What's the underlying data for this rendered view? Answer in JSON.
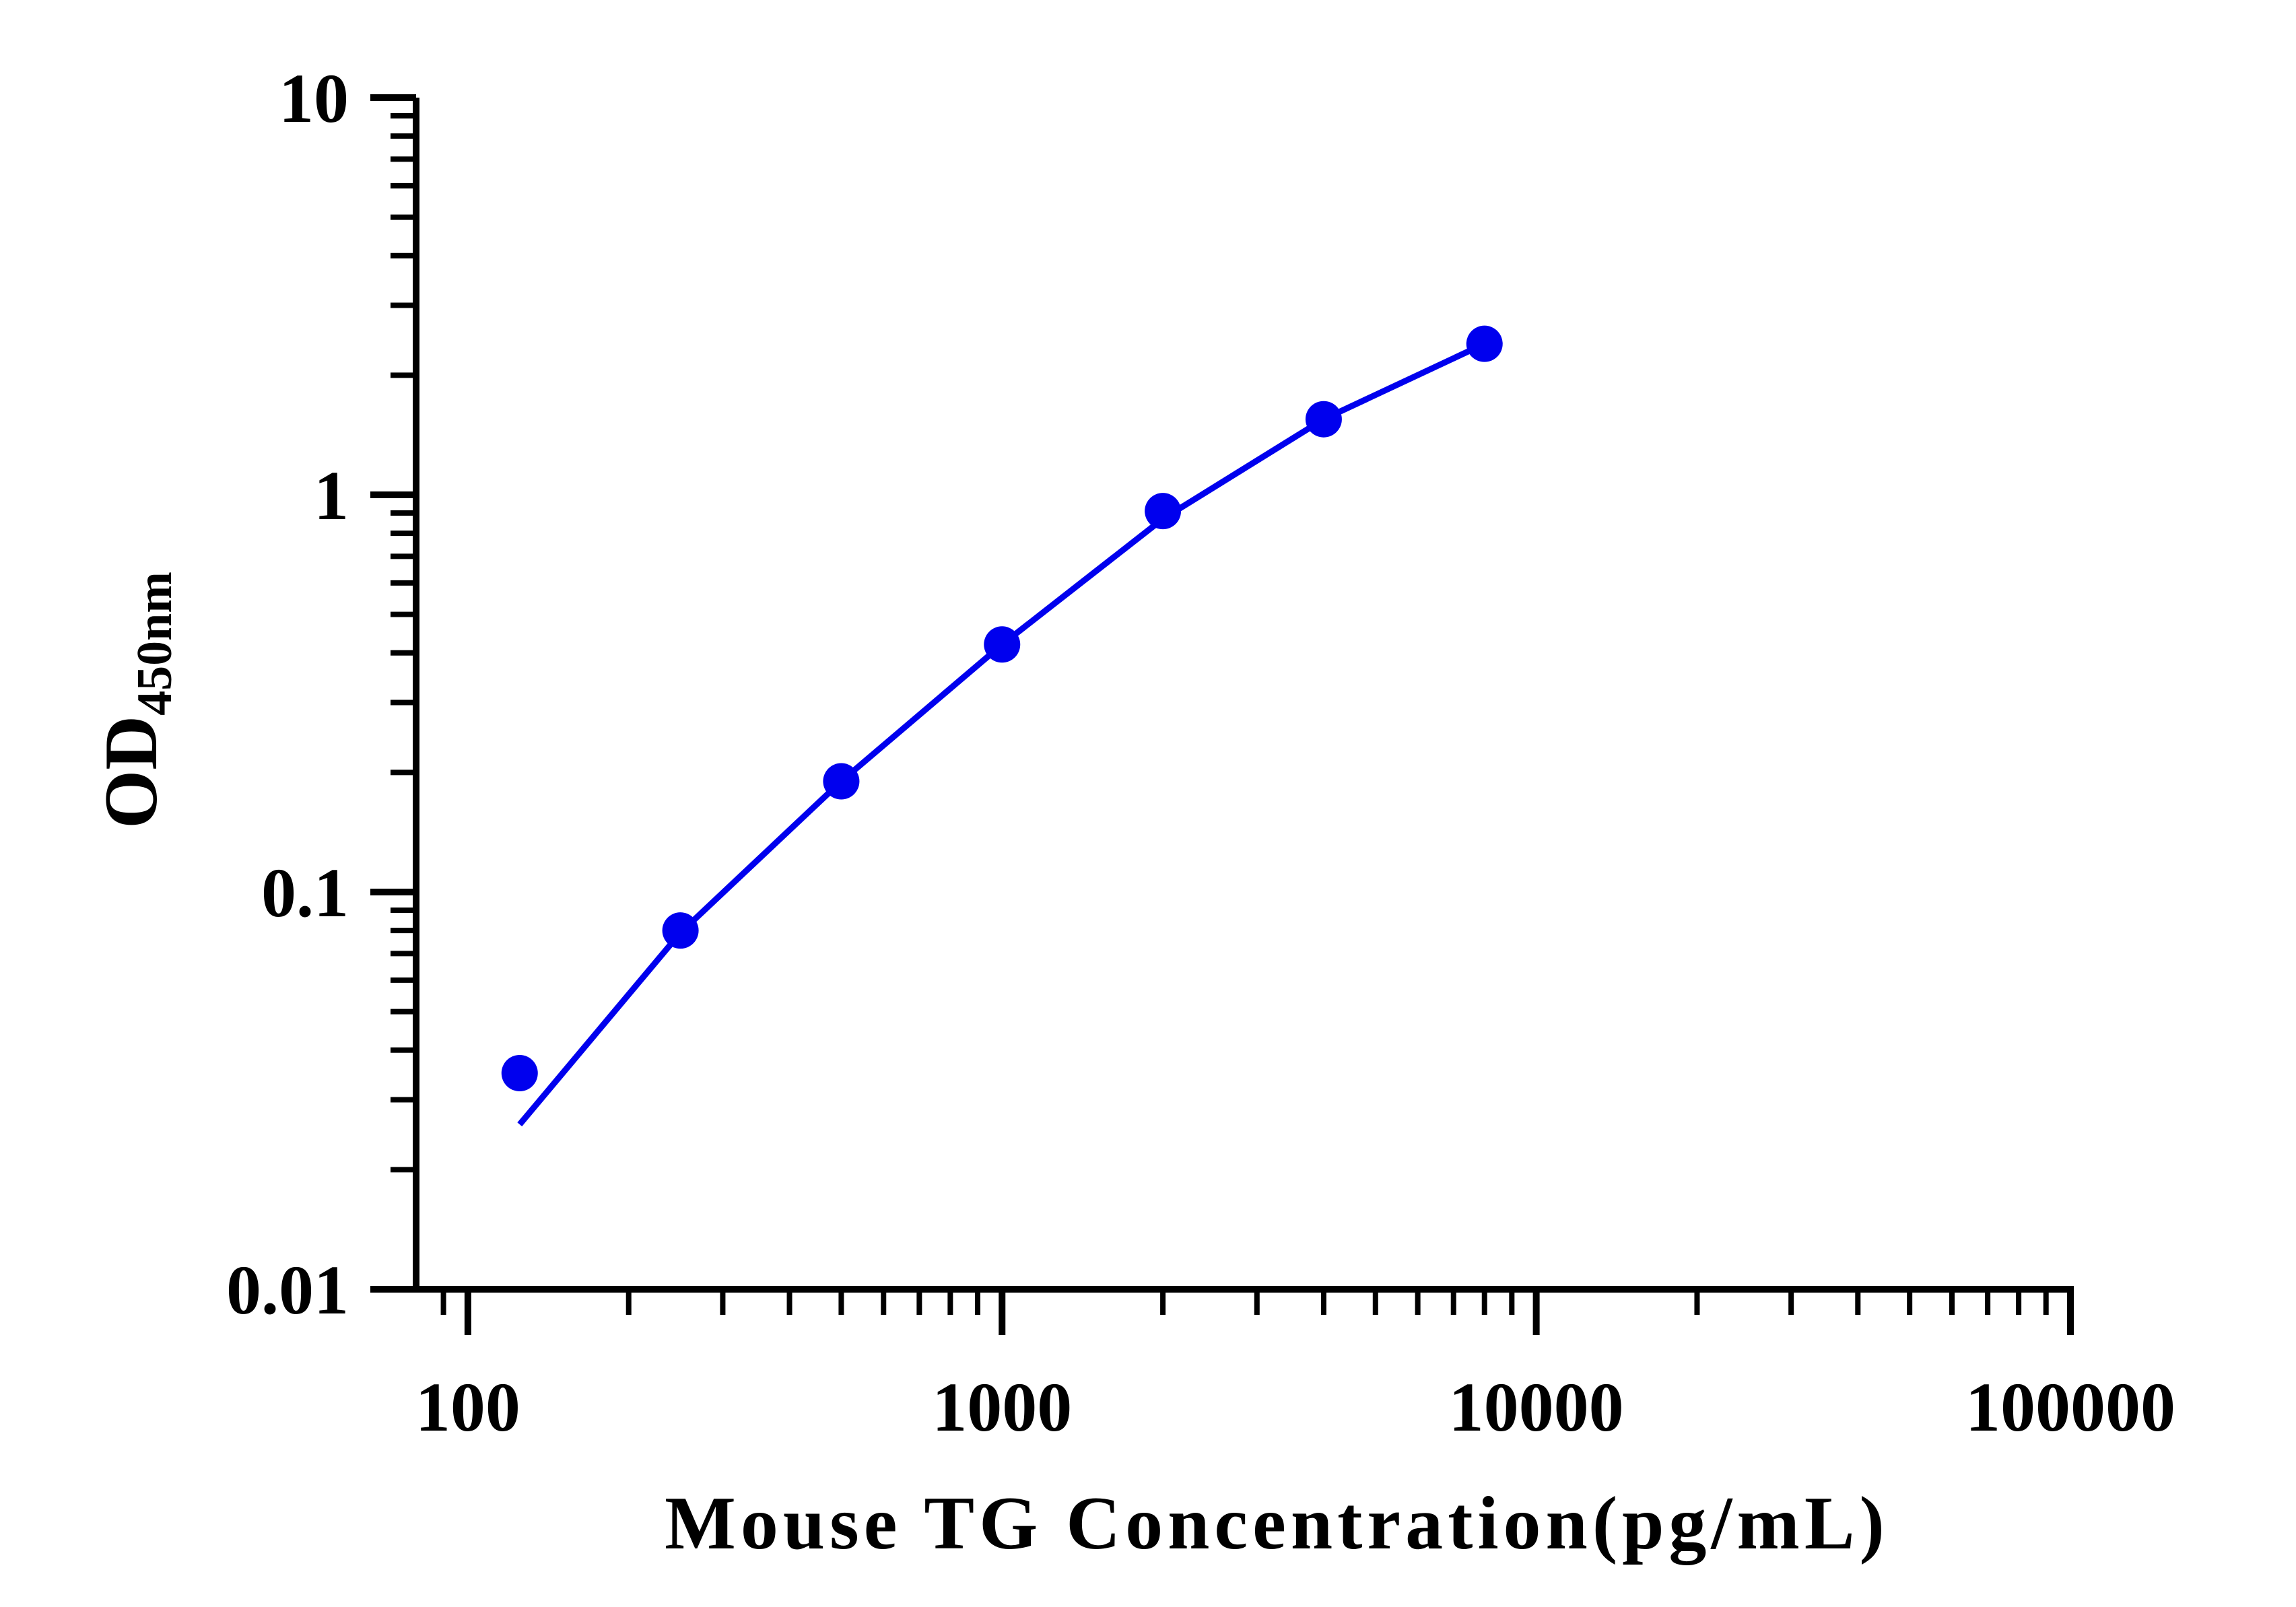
{
  "chart_data": {
    "type": "scatter",
    "title": "",
    "xlabel": "Mouse TG Concentration(pg/mL)",
    "ylabel": {
      "main": "OD",
      "subscript": "450nm"
    },
    "x_scale": "log",
    "y_scale": "log",
    "xlim": [
      80,
      100000
    ],
    "ylim": [
      0.01,
      10
    ],
    "x_ticks": [
      {
        "value": 100,
        "label": "100"
      },
      {
        "value": 1000,
        "label": "1000"
      },
      {
        "value": 10000,
        "label": "10000"
      },
      {
        "value": 100000,
        "label": "100000"
      }
    ],
    "y_ticks": [
      {
        "value": 0.01,
        "label": "0.01"
      },
      {
        "value": 0.1,
        "label": "0.1"
      },
      {
        "value": 1,
        "label": "1"
      },
      {
        "value": 10,
        "label": "10"
      }
    ],
    "grid": false,
    "legend": "none",
    "color": "#0000ee",
    "series": [
      {
        "points": [
          {
            "x": 125,
            "y": 0.035
          },
          {
            "x": 250,
            "y": 0.08
          },
          {
            "x": 500,
            "y": 0.19
          },
          {
            "x": 1000,
            "y": 0.42
          },
          {
            "x": 2000,
            "y": 0.91
          },
          {
            "x": 4000,
            "y": 1.55
          },
          {
            "x": 8000,
            "y": 2.4
          }
        ],
        "fit_curve": [
          {
            "x": 125,
            "y": 0.026
          },
          {
            "x": 250,
            "y": 0.079
          },
          {
            "x": 500,
            "y": 0.19
          },
          {
            "x": 1000,
            "y": 0.42
          },
          {
            "x": 2000,
            "y": 0.87
          },
          {
            "x": 4000,
            "y": 1.55
          },
          {
            "x": 8000,
            "y": 2.4
          }
        ]
      }
    ]
  }
}
